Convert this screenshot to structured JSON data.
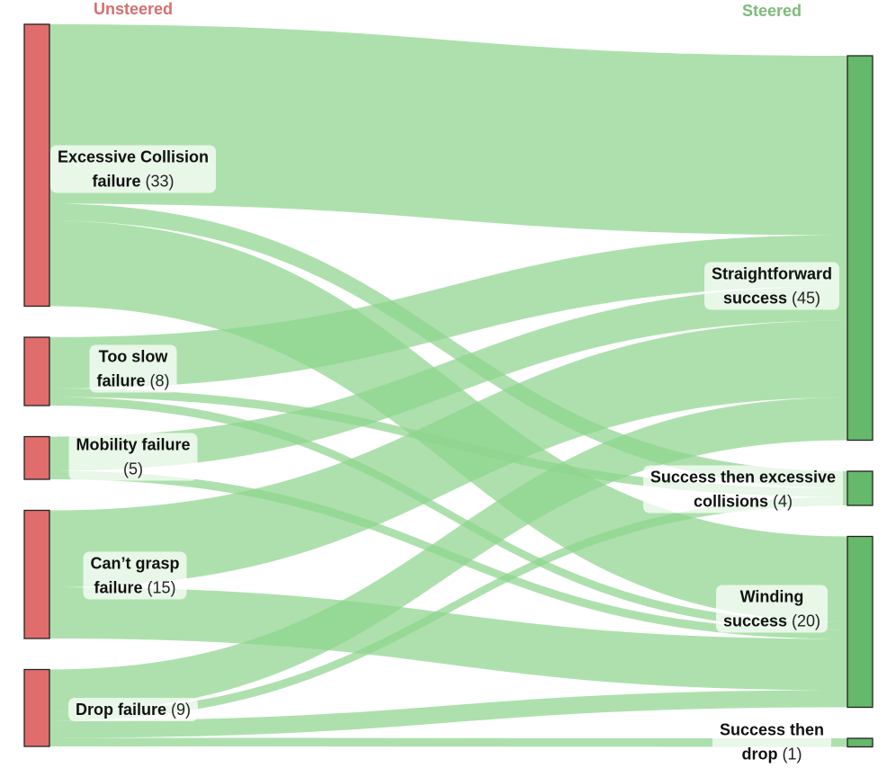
{
  "chart_data": {
    "type": "sankey",
    "left_title": "Unsteered",
    "right_title": "Steered",
    "colors": {
      "source_node": "#e06c6c",
      "target_node": "#66b86a",
      "link": "#8ed48e",
      "left_title": "#d4706e",
      "right_title": "#7dbb7a"
    },
    "sources": [
      {
        "id": "collision",
        "name": "Excessive Collision",
        "suffix": "failure",
        "count": 33
      },
      {
        "id": "slow",
        "name": "Too slow",
        "suffix": "failure",
        "count": 8
      },
      {
        "id": "mobility",
        "name": "Mobility failure",
        "suffix": "",
        "count": 5
      },
      {
        "id": "grasp",
        "name": "Can’t grasp",
        "suffix": "failure",
        "count": 15
      },
      {
        "id": "drop",
        "name": "Drop failure",
        "suffix": "",
        "count": 9
      }
    ],
    "targets": [
      {
        "id": "straight",
        "name": "Straightforward",
        "suffix": "success",
        "count": 45
      },
      {
        "id": "coll",
        "name": "Success then excessive",
        "suffix": "collisions",
        "count": 4
      },
      {
        "id": "winding",
        "name": "Winding",
        "suffix": "success",
        "count": 20
      },
      {
        "id": "sdrop",
        "name": "Success then",
        "suffix": "drop",
        "count": 1
      }
    ],
    "flows": [
      {
        "source": "collision",
        "target": "straight",
        "value": 21
      },
      {
        "source": "collision",
        "target": "coll",
        "value": 2
      },
      {
        "source": "collision",
        "target": "winding",
        "value": 10
      },
      {
        "source": "slow",
        "target": "straight",
        "value": 6
      },
      {
        "source": "slow",
        "target": "coll",
        "value": 1
      },
      {
        "source": "slow",
        "target": "winding",
        "value": 1
      },
      {
        "source": "mobility",
        "target": "straight",
        "value": 4
      },
      {
        "source": "mobility",
        "target": "winding",
        "value": 1
      },
      {
        "source": "grasp",
        "target": "straight",
        "value": 9
      },
      {
        "source": "grasp",
        "target": "winding",
        "value": 6
      },
      {
        "source": "drop",
        "target": "straight",
        "value": 5
      },
      {
        "source": "drop",
        "target": "coll",
        "value": 1
      },
      {
        "source": "drop",
        "target": "winding",
        "value": 2
      },
      {
        "source": "drop",
        "target": "sdrop",
        "value": 1
      }
    ]
  }
}
